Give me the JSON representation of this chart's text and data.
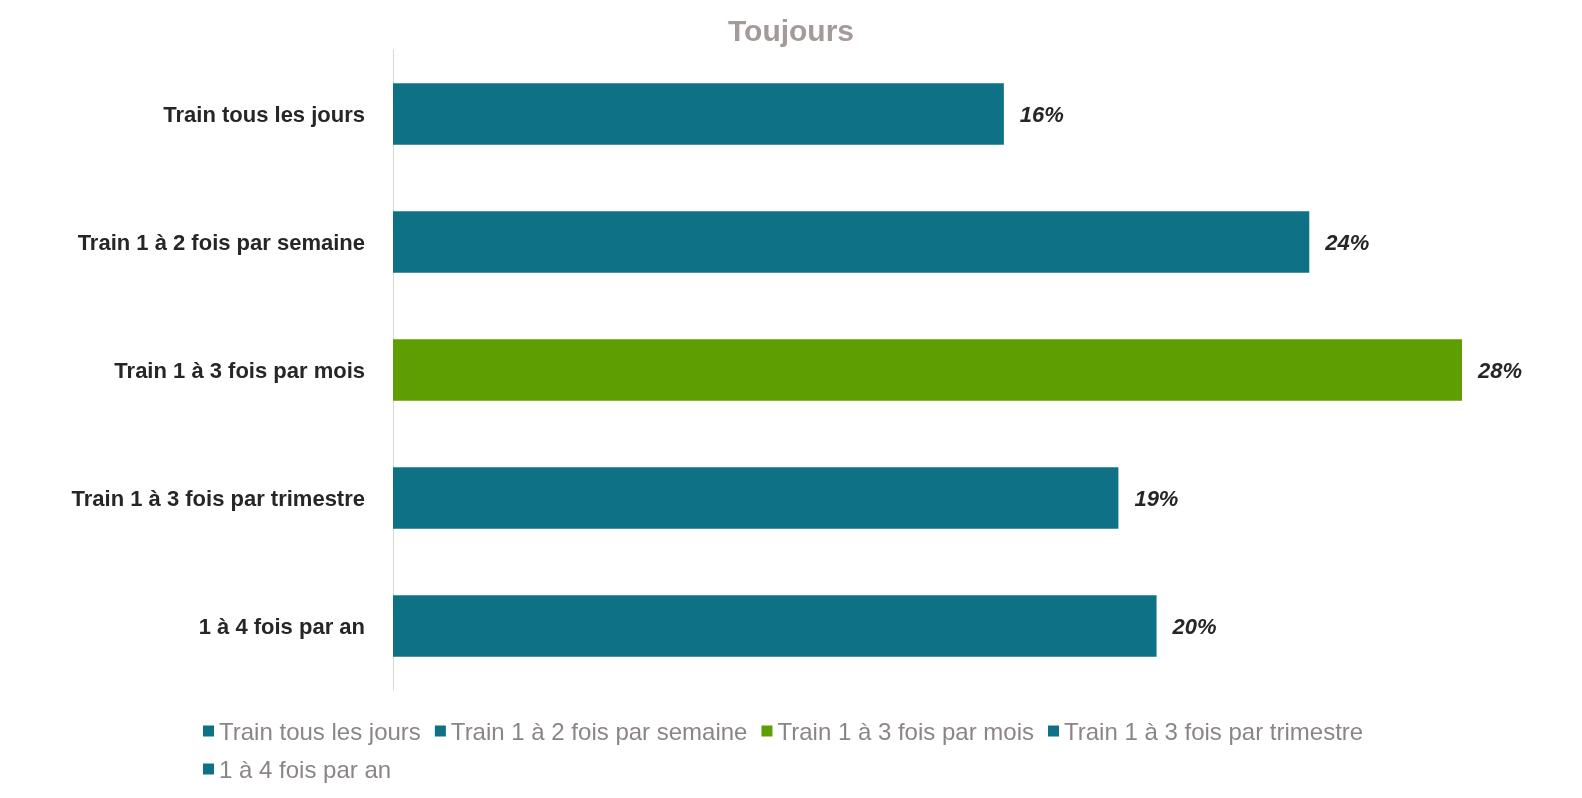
{
  "chart_data": {
    "type": "bar",
    "title": "Toujours",
    "orientation": "horizontal",
    "stacked": true,
    "tick_labels": "y",
    "categories": [
      "Train tous les jours",
      "Train 1 à 2 fois par semaine",
      "Train 1 à 3 fois par mois",
      "Train 1 à 3 fois par trimestre",
      "1 à 4 fois par an"
    ],
    "series": [
      {
        "name": "Train tous les jours",
        "color": "#0f7185",
        "values": [
          16,
          null,
          null,
          null,
          null
        ],
        "value_labels": [
          "16%",
          null,
          null,
          null,
          null
        ]
      },
      {
        "name": "Train 1 à 2 fois par semaine",
        "color": "#0f7185",
        "values": [
          null,
          24,
          null,
          null,
          null
        ],
        "value_labels": [
          null,
          "24%",
          null,
          null,
          null
        ]
      },
      {
        "name": "Train 1 à 3 fois par mois",
        "color": "#5f9e00",
        "values": [
          null,
          null,
          28,
          null,
          null
        ],
        "value_labels": [
          null,
          null,
          "28%",
          null,
          null
        ]
      },
      {
        "name": "Train 1 à 3 fois par trimestre",
        "color": "#0f7185",
        "values": [
          null,
          null,
          null,
          19,
          null
        ],
        "value_labels": [
          null,
          null,
          null,
          "19%",
          null
        ]
      },
      {
        "name": "1 à 4 fois par an",
        "color": "#0f7185",
        "values": [
          null,
          null,
          null,
          null,
          20
        ],
        "value_labels": [
          null,
          null,
          null,
          null,
          "20%"
        ]
      }
    ],
    "legend": "bottom"
  }
}
